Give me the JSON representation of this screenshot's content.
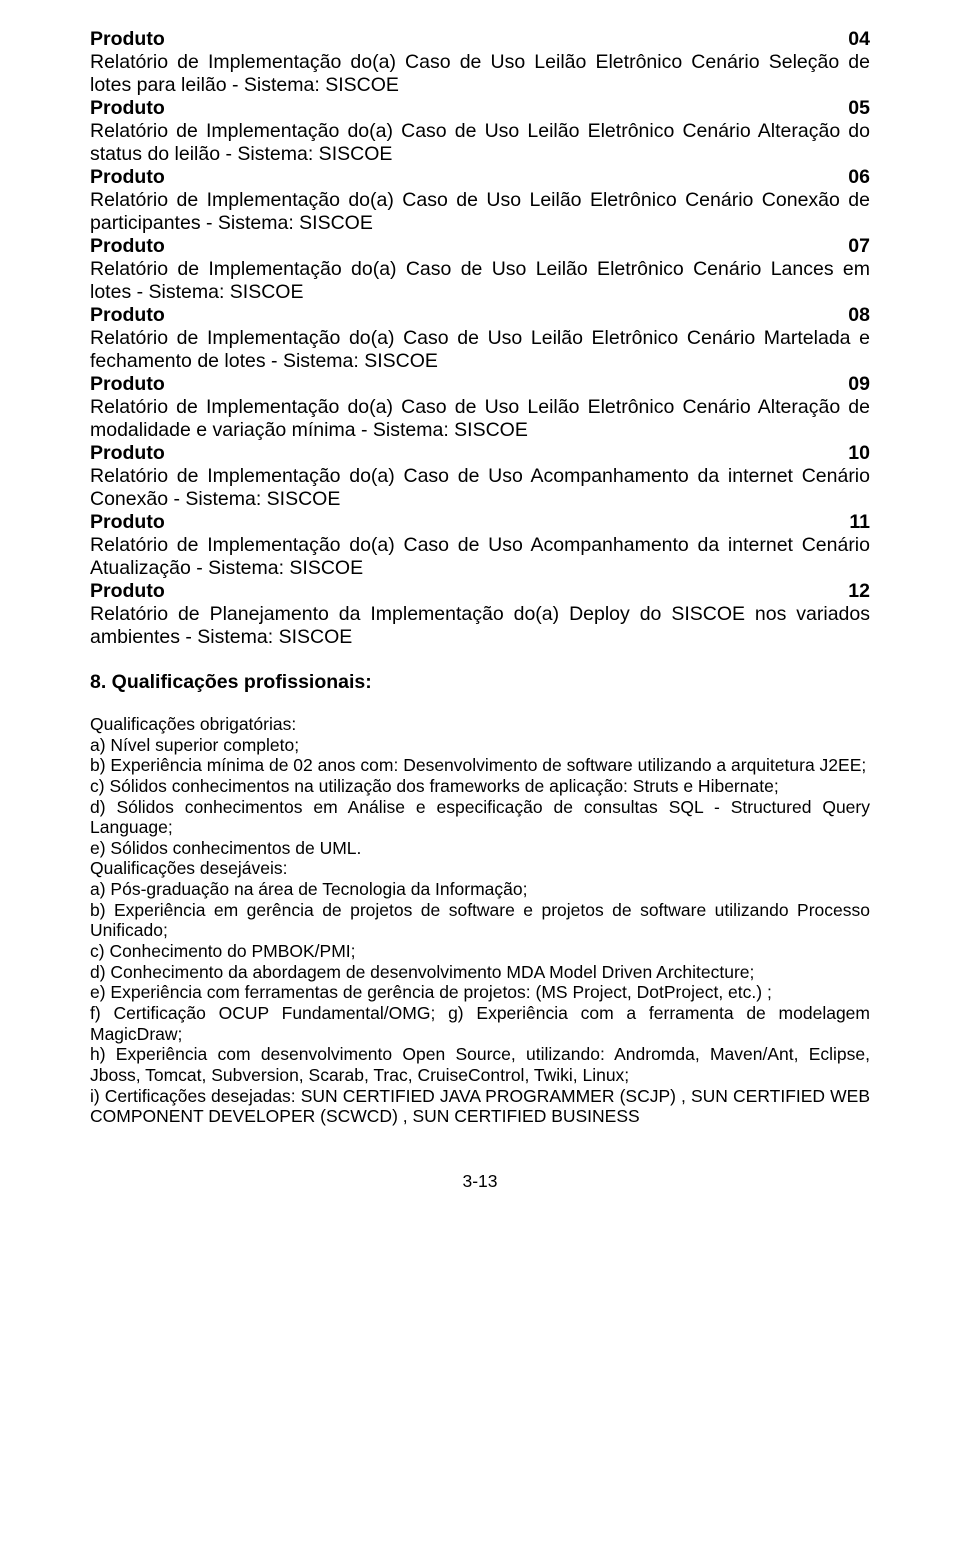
{
  "footer": "3-13",
  "produtos": [
    {
      "label": "Produto",
      "num": "04",
      "desc": "Relatório de Implementação do(a) Caso de Uso Leilão Eletrônico Cenário Seleção de lotes para leilão - Sistema: SISCOE"
    },
    {
      "label": "Produto",
      "num": "05",
      "desc": "Relatório de Implementação do(a) Caso de Uso Leilão Eletrônico Cenário Alteração do status do leilão - Sistema: SISCOE"
    },
    {
      "label": "Produto",
      "num": "06",
      "desc": "Relatório de Implementação do(a) Caso de Uso Leilão Eletrônico Cenário Conexão de participantes - Sistema: SISCOE"
    },
    {
      "label": "Produto",
      "num": "07",
      "desc": "Relatório de Implementação do(a) Caso de Uso Leilão Eletrônico Cenário Lances em lotes - Sistema: SISCOE"
    },
    {
      "label": "Produto",
      "num": "08",
      "desc": "Relatório de Implementação do(a) Caso de Uso Leilão Eletrônico Cenário Martelada e fechamento de lotes - Sistema: SISCOE"
    },
    {
      "label": "Produto",
      "num": "09",
      "desc": "Relatório de Implementação do(a) Caso de Uso Leilão Eletrônico Cenário Alteração de modalidade e variação mínima - Sistema: SISCOE"
    },
    {
      "label": "Produto",
      "num": "10",
      "desc": "Relatório de Implementação do(a) Caso de Uso Acompanhamento da internet Cenário Conexão - Sistema: SISCOE"
    },
    {
      "label": "Produto",
      "num": "11",
      "desc": "Relatório de Implementação do(a) Caso de Uso Acompanhamento da internet Cenário Atualização - Sistema: SISCOE"
    },
    {
      "label": "Produto",
      "num": "12",
      "desc": "Relatório de Planejamento da Implementação do(a) Deploy do SISCOE nos variados ambientes - Sistema: SISCOE"
    }
  ],
  "section8": {
    "title": "8. Qualificações profissionais:",
    "oblig_header": "Qualificações obrigatórias:",
    "oblig": [
      "a) Nível superior completo;",
      "b) Experiência mínima de 02 anos com: Desenvolvimento de software utilizando a arquitetura J2EE;",
      "c) Sólidos conhecimentos na utilização dos frameworks de aplicação: Struts e Hibernate;",
      "d) Sólidos conhecimentos em Análise e especificação de consultas SQL - Structured Query Language;",
      "e) Sólidos conhecimentos de UML."
    ],
    "desej_header": "Qualificações desejáveis:",
    "desej": [
      "a) Pós-graduação na área de Tecnologia da Informação;",
      "b) Experiência em gerência de projetos de software e projetos de software utilizando Processo Unificado;",
      "c) Conhecimento do PMBOK/PMI;",
      "d) Conhecimento da abordagem de desenvolvimento MDA Model Driven Architecture;",
      "e) Experiência com ferramentas de gerência de projetos: (MS Project, DotProject, etc.) ;",
      "f) Certificação OCUP Fundamental/OMG; g) Experiência com a ferramenta de modelagem MagicDraw;",
      "h) Experiência com desenvolvimento Open Source, utilizando: Andromda,  Maven/Ant, Eclipse, Jboss, Tomcat, Subversion, Scarab, Trac, CruiseControl, Twiki, Linux;",
      "i) Certificações desejadas: SUN CERTIFIED JAVA PROGRAMMER (SCJP) , SUN CERTIFIED WEB COMPONENT DEVELOPER (SCWCD) , SUN CERTIFIED BUSINESS"
    ]
  }
}
